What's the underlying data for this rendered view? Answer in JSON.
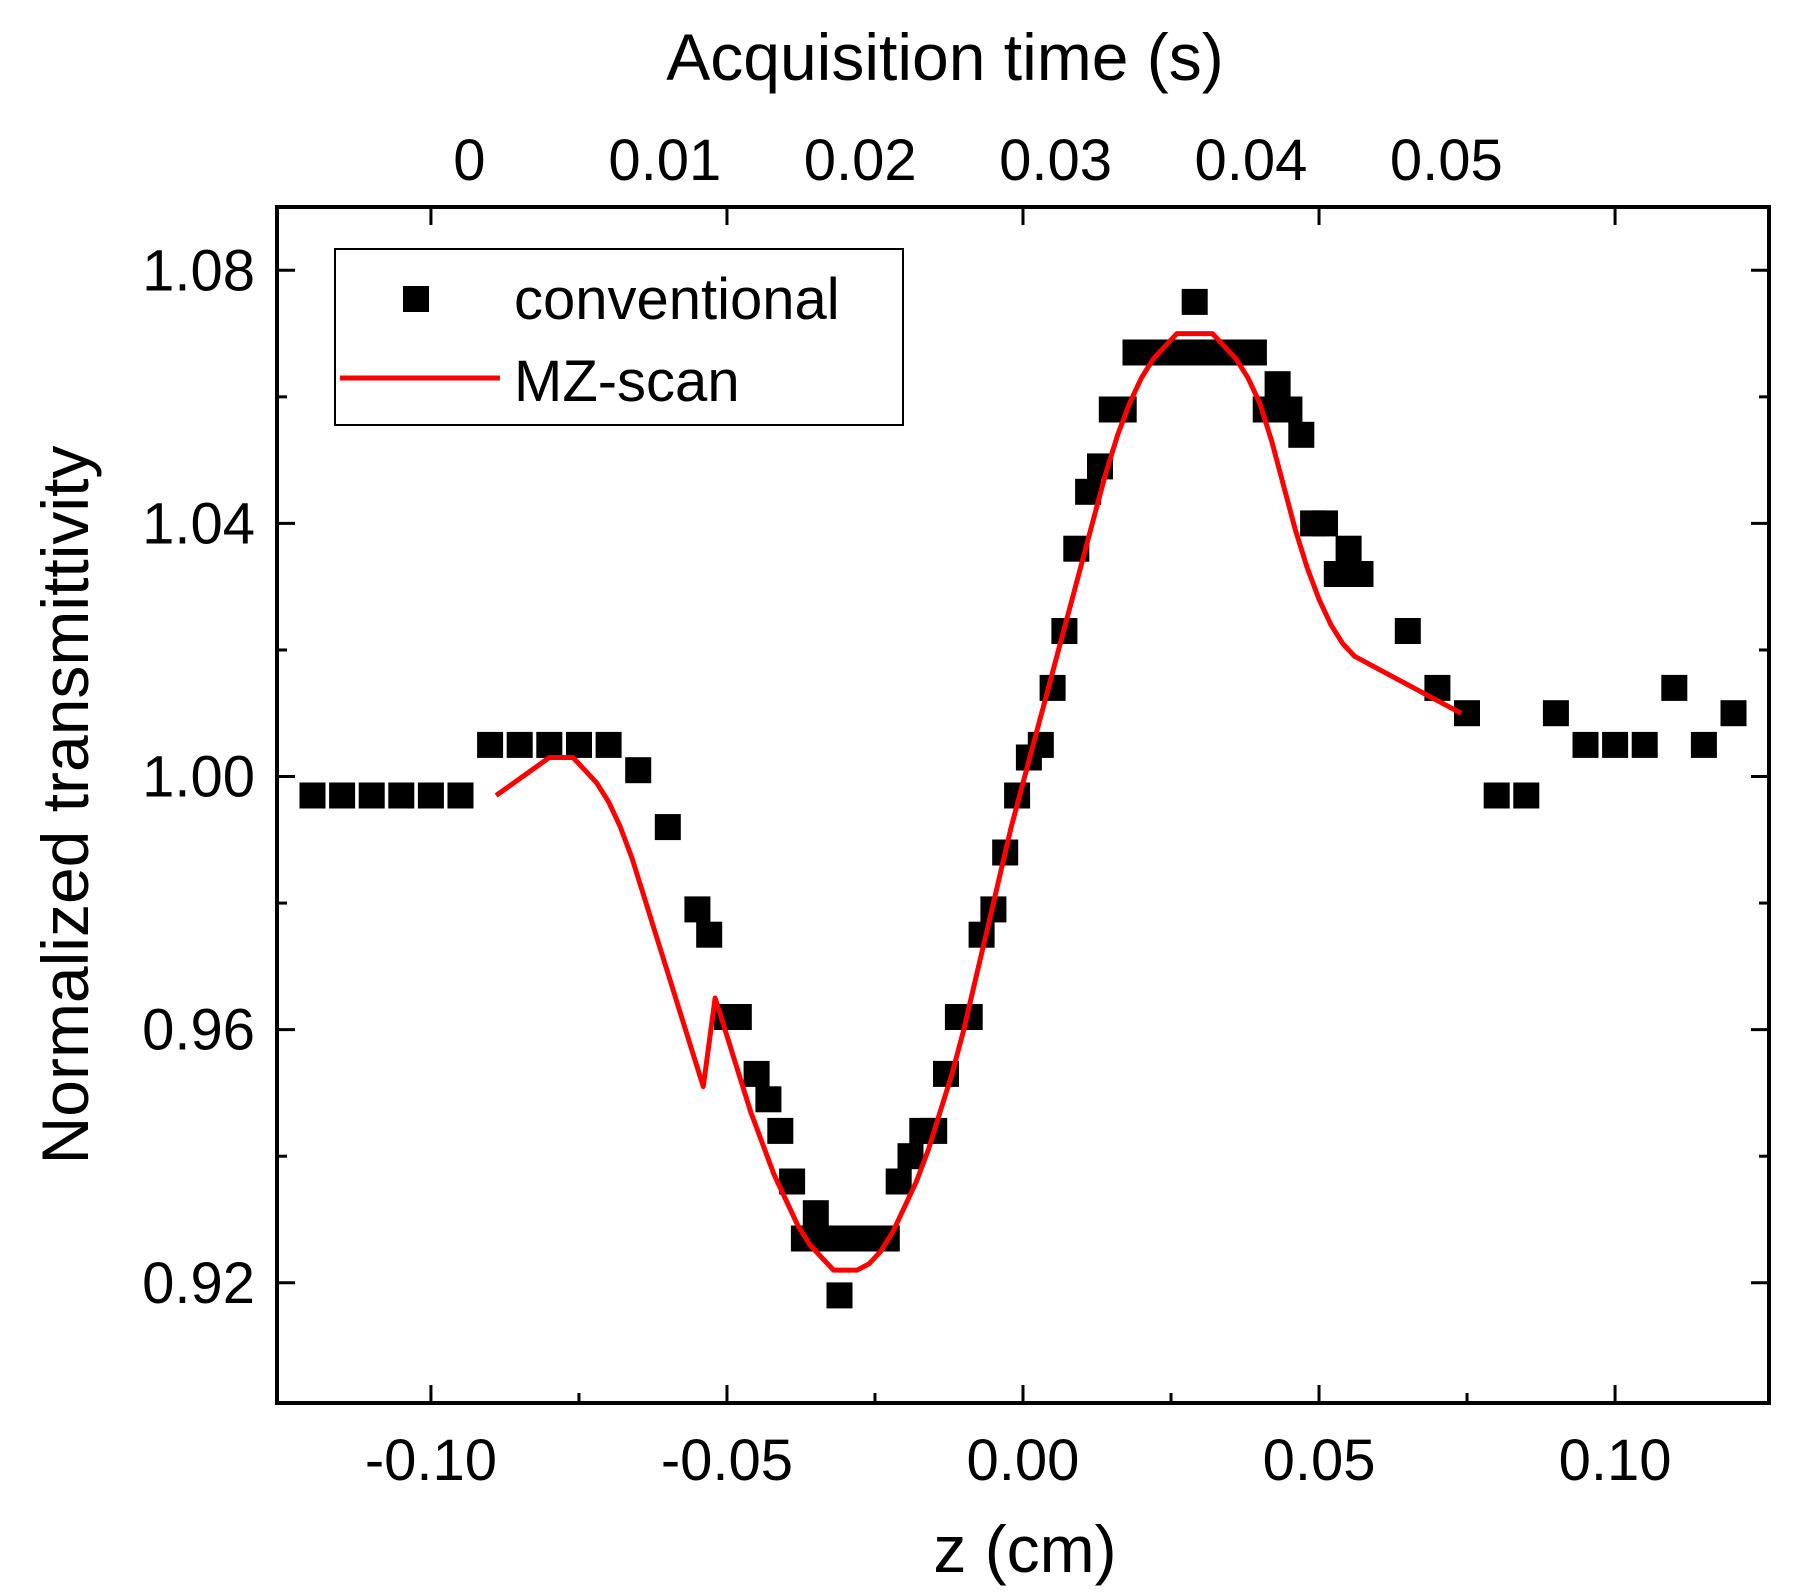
{
  "chart_data": {
    "type": "scatter",
    "title": "",
    "xlabel": "z (cm)",
    "ylabel": "Normalized transmittivity",
    "top_xlabel": "Acquisition time (s)",
    "xlim": [
      -0.126,
      0.126
    ],
    "ylim": [
      0.901,
      1.09
    ],
    "x_ticks": [
      -0.1,
      -0.05,
      0.0,
      0.05,
      0.1
    ],
    "x_tick_labels": [
      "-0.10",
      "-0.05",
      "0.00",
      "0.05",
      "0.10"
    ],
    "y_ticks": [
      0.92,
      0.96,
      1.0,
      1.04,
      1.08
    ],
    "y_tick_labels": [
      "0.92",
      "0.96",
      "1.00",
      "1.04",
      "1.08"
    ],
    "top_ticks_z": [
      -0.0935,
      -0.0605,
      -0.0275,
      0.0055,
      0.0385,
      0.0715
    ],
    "top_tick_labels": [
      "0",
      "0.01",
      "0.02",
      "0.03",
      "0.04",
      "0.05"
    ],
    "legend": {
      "position": "top-left",
      "entries": [
        "conventional",
        "MZ-scan"
      ]
    },
    "series": [
      {
        "name": "conventional",
        "kind": "markers",
        "marker": "square",
        "color": "#000000",
        "x": [
          -0.12,
          -0.115,
          -0.11,
          -0.105,
          -0.1,
          -0.095,
          -0.09,
          -0.085,
          -0.08,
          -0.075,
          -0.07,
          -0.065,
          -0.06,
          -0.055,
          -0.053,
          -0.05,
          -0.048,
          -0.045,
          -0.043,
          -0.041,
          -0.039,
          -0.037,
          -0.035,
          -0.033,
          -0.031,
          -0.029,
          -0.027,
          -0.025,
          -0.023,
          -0.021,
          -0.019,
          -0.017,
          -0.015,
          -0.013,
          -0.011,
          -0.009,
          -0.007,
          -0.005,
          -0.003,
          -0.001,
          0.001,
          0.003,
          0.005,
          0.007,
          0.009,
          0.011,
          0.013,
          0.015,
          0.017,
          0.019,
          0.021,
          0.023,
          0.025,
          0.027,
          0.029,
          0.031,
          0.033,
          0.035,
          0.037,
          0.039,
          0.041,
          0.043,
          0.045,
          0.047,
          0.049,
          0.051,
          0.053,
          0.055,
          0.057,
          0.065,
          0.07,
          0.075,
          0.08,
          0.085,
          0.09,
          0.095,
          0.1,
          0.105,
          0.11,
          0.115,
          0.12
        ],
        "y": [
          0.997,
          0.997,
          0.997,
          0.997,
          0.997,
          0.997,
          1.005,
          1.005,
          1.005,
          1.005,
          1.005,
          1.001,
          0.992,
          0.979,
          0.975,
          0.962,
          0.962,
          0.953,
          0.949,
          0.944,
          0.936,
          0.927,
          0.931,
          0.927,
          0.918,
          0.927,
          0.927,
          0.927,
          0.927,
          0.936,
          0.94,
          0.944,
          0.944,
          0.953,
          0.962,
          0.962,
          0.975,
          0.979,
          0.988,
          0.997,
          1.003,
          1.005,
          1.014,
          1.023,
          1.036,
          1.045,
          1.049,
          1.058,
          1.058,
          1.067,
          1.067,
          1.067,
          1.067,
          1.067,
          1.075,
          1.067,
          1.067,
          1.067,
          1.067,
          1.067,
          1.058,
          1.062,
          1.058,
          1.054,
          1.04,
          1.04,
          1.032,
          1.036,
          1.032,
          1.023,
          1.014,
          1.01,
          0.997,
          0.997,
          1.01,
          1.005,
          1.005,
          1.005,
          1.014,
          1.005,
          1.01
        ]
      },
      {
        "name": "MZ-scan",
        "kind": "line",
        "color": "#ff0000",
        "x": [
          -0.089,
          -0.086,
          -0.083,
          -0.08,
          -0.078,
          -0.076,
          -0.074,
          -0.072,
          -0.07,
          -0.068,
          -0.066,
          -0.064,
          -0.062,
          -0.06,
          -0.058,
          -0.056,
          -0.054,
          -0.052,
          -0.05,
          -0.048,
          -0.046,
          -0.044,
          -0.042,
          -0.04,
          -0.038,
          -0.036,
          -0.034,
          -0.032,
          -0.03,
          -0.028,
          -0.026,
          -0.024,
          -0.022,
          -0.02,
          -0.018,
          -0.016,
          -0.014,
          -0.012,
          -0.01,
          -0.008,
          -0.006,
          -0.004,
          -0.002,
          0.0,
          0.002,
          0.004,
          0.006,
          0.008,
          0.01,
          0.012,
          0.014,
          0.016,
          0.018,
          0.02,
          0.022,
          0.024,
          0.026,
          0.028,
          0.03,
          0.032,
          0.034,
          0.036,
          0.038,
          0.04,
          0.042,
          0.044,
          0.046,
          0.048,
          0.05,
          0.052,
          0.054,
          0.056,
          0.058,
          0.06,
          0.062,
          0.064,
          0.066,
          0.068,
          0.07,
          0.072,
          0.074
        ],
        "y": [
          0.997,
          0.999,
          1.001,
          1.003,
          1.003,
          1.003,
          1.001,
          0.999,
          0.996,
          0.992,
          0.987,
          0.981,
          0.975,
          0.969,
          0.963,
          0.957,
          0.951,
          0.965,
          0.959,
          0.953,
          0.947,
          0.942,
          0.937,
          0.933,
          0.929,
          0.926,
          0.924,
          0.922,
          0.922,
          0.922,
          0.923,
          0.925,
          0.928,
          0.932,
          0.936,
          0.941,
          0.947,
          0.953,
          0.96,
          0.968,
          0.976,
          0.984,
          0.992,
          0.999,
          1.006,
          1.013,
          1.02,
          1.027,
          1.034,
          1.041,
          1.048,
          1.054,
          1.059,
          1.063,
          1.066,
          1.068,
          1.07,
          1.07,
          1.07,
          1.07,
          1.068,
          1.066,
          1.063,
          1.059,
          1.053,
          1.046,
          1.039,
          1.033,
          1.028,
          1.024,
          1.021,
          1.019,
          1.018,
          1.017,
          1.016,
          1.015,
          1.014,
          1.013,
          1.012,
          1.011,
          1.01
        ]
      }
    ]
  }
}
